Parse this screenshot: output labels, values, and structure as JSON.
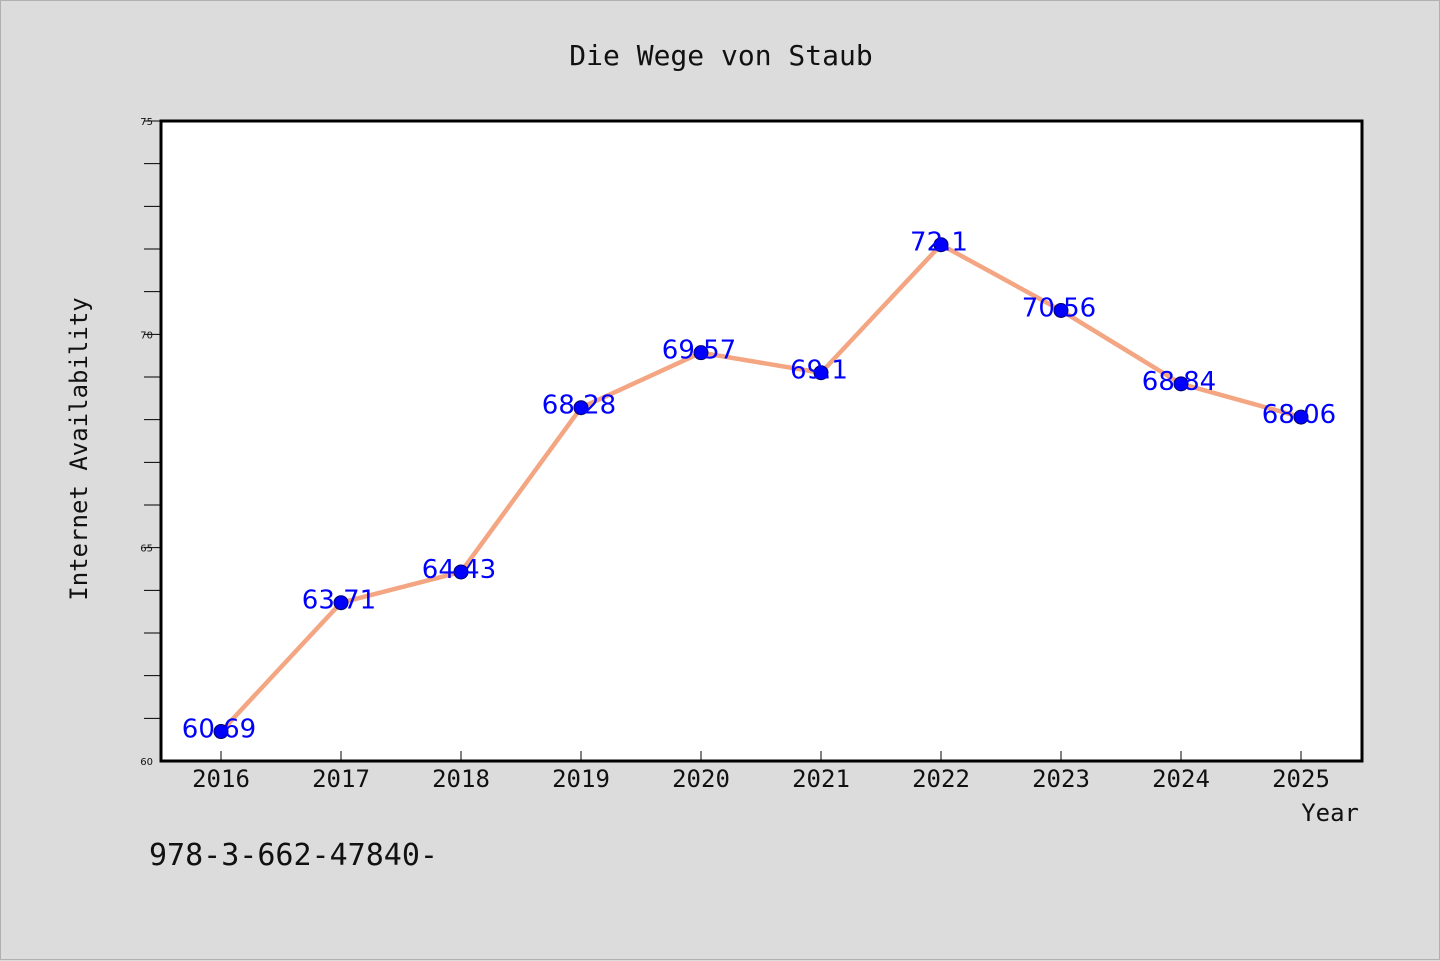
{
  "chart_data": {
    "type": "line",
    "title": "Die Wege von Staub",
    "xlabel": "Year",
    "ylabel": "Internet Availability",
    "footnote": "978-3-662-47840-",
    "x": [
      "2016",
      "2017",
      "2018",
      "2019",
      "2020",
      "2021",
      "2022",
      "2023",
      "2024",
      "2025"
    ],
    "series": [
      {
        "values": [
          60.69,
          63.71,
          64.43,
          68.28,
          69.57,
          69.1,
          72.1,
          70.56,
          68.84,
          68.06
        ],
        "labels": [
          "60.69",
          "63.71",
          "64.43",
          "68.28",
          "69.57",
          "69.1",
          "72.1",
          "70.56",
          "68.84",
          "68.06"
        ]
      }
    ],
    "ylim": [
      60,
      75
    ],
    "yticks": [
      60,
      65,
      70,
      75
    ],
    "grid": false,
    "colors": {
      "background": "#dcdcdc",
      "plot_area": "#ffffff",
      "line": "#f4a582",
      "marker": "#0000ff",
      "data_label": "#0000ff",
      "text": "#111111"
    }
  }
}
